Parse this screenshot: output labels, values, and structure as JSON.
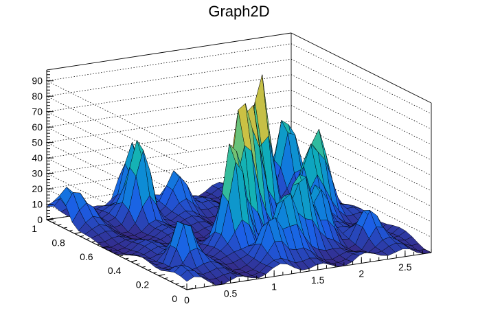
{
  "chart_data": {
    "type": "surface3d",
    "title": "Graph2D",
    "xlabel": "",
    "ylabel": "",
    "zlabel": "",
    "xlim": [
      0,
      2.8
    ],
    "ylim": [
      0,
      1
    ],
    "zlim": [
      0,
      97
    ],
    "x_ticks": [
      "0",
      "0.5",
      "1",
      "1.5",
      "2",
      "2.5"
    ],
    "y_ticks": [
      "0",
      "0.2",
      "0.4",
      "0.6",
      "0.8",
      "1"
    ],
    "z_ticks": [
      "0",
      "10",
      "20",
      "30",
      "40",
      "50",
      "60",
      "70",
      "80",
      "90"
    ],
    "grid": true,
    "colormap": [
      "#352a87",
      "#1c5ee6",
      "#0d86d9",
      "#0fb0b8",
      "#4bc48a",
      "#b7bd4c",
      "#f5c833",
      "#f9fb0e"
    ],
    "peaks": [
      {
        "x": 0.1,
        "y": 0.1,
        "z": 5
      },
      {
        "x": 0.35,
        "y": 0.25,
        "z": 32
      },
      {
        "x": 0.05,
        "y": 0.9,
        "z": 20
      },
      {
        "x": 0.2,
        "y": 0.85,
        "z": 12
      },
      {
        "x": 0.9,
        "y": 0.95,
        "z": 40
      },
      {
        "x": 0.75,
        "y": 0.8,
        "z": 55
      },
      {
        "x": 1.25,
        "y": 0.85,
        "z": 28
      },
      {
        "x": 1.1,
        "y": 0.35,
        "z": 72
      },
      {
        "x": 1.35,
        "y": 0.45,
        "z": 80
      },
      {
        "x": 1.55,
        "y": 0.5,
        "z": 78
      },
      {
        "x": 1.8,
        "y": 0.6,
        "z": 97
      },
      {
        "x": 1.2,
        "y": 0.15,
        "z": 32
      },
      {
        "x": 1.45,
        "y": 0.2,
        "z": 38
      },
      {
        "x": 1.7,
        "y": 0.25,
        "z": 52
      },
      {
        "x": 2.0,
        "y": 0.3,
        "z": 35
      },
      {
        "x": 2.2,
        "y": 0.5,
        "z": 45
      },
      {
        "x": 2.4,
        "y": 0.55,
        "z": 56
      },
      {
        "x": 2.5,
        "y": 0.85,
        "z": 48
      },
      {
        "x": 2.75,
        "y": 0.75,
        "z": 22
      },
      {
        "x": 2.4,
        "y": 0.2,
        "z": 20
      }
    ]
  }
}
